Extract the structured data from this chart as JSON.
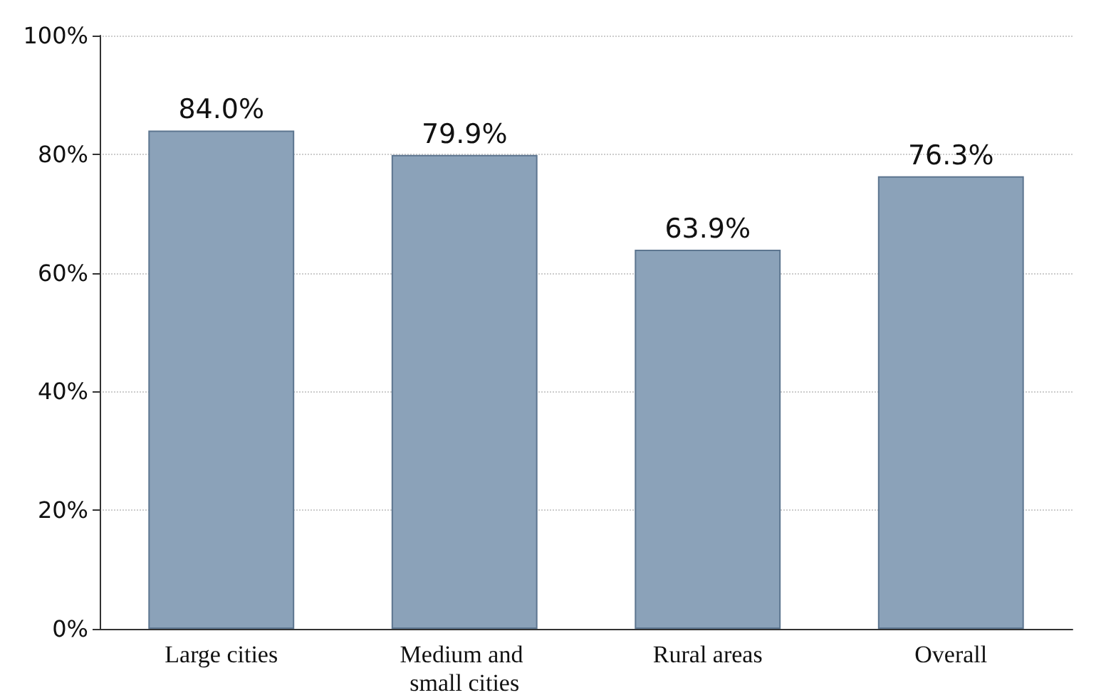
{
  "chart_data": {
    "type": "bar",
    "categories": [
      "Large cities",
      "Medium and small cities",
      "Rural areas",
      "Overall"
    ],
    "values": [
      84.0,
      79.9,
      63.9,
      76.3
    ],
    "value_labels": [
      "84.0%",
      "79.9%",
      "63.9%",
      "76.3%"
    ],
    "color": "#8ba2b9",
    "ylim": [
      0,
      100
    ],
    "yticks": [
      {
        "value": 0,
        "label": "0%"
      },
      {
        "value": 20,
        "label": "20%"
      },
      {
        "value": 40,
        "label": "40%"
      },
      {
        "value": 60,
        "label": "60%"
      },
      {
        "value": 80,
        "label": "80%"
      },
      {
        "value": 100,
        "label": "100%"
      }
    ],
    "grid": "y"
  }
}
